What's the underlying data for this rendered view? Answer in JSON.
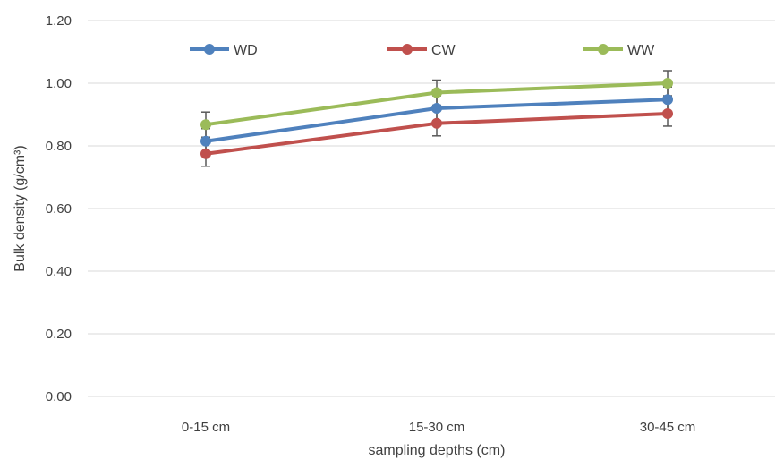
{
  "chart_data": {
    "type": "line",
    "title": "",
    "xlabel": "sampling depths (cm)",
    "ylabel": "Bulk density  (g/cm³)",
    "categories": [
      "0-15 cm",
      "15-30 cm",
      "30-45 cm"
    ],
    "ylim": [
      0,
      1.2
    ],
    "y_ticks": [
      "0.00",
      "0.20",
      "0.40",
      "0.60",
      "0.80",
      "1.00",
      "1.20"
    ],
    "y_tick_values": [
      0,
      0.2,
      0.4,
      0.6,
      0.8,
      1.0,
      1.2
    ],
    "grid": true,
    "legend_position": "top",
    "series": [
      {
        "name": "WD",
        "color": "#4f81bd",
        "values": [
          0.815,
          0.92,
          0.948
        ],
        "errors": [
          0.04,
          0.04,
          0.04
        ]
      },
      {
        "name": "CW",
        "color": "#c0504d",
        "values": [
          0.775,
          0.872,
          0.903
        ],
        "errors": [
          0.04,
          0.04,
          0.04
        ]
      },
      {
        "name": "WW",
        "color": "#9bbb59",
        "values": [
          0.868,
          0.97,
          1.0
        ],
        "errors": [
          0.04,
          0.04,
          0.04
        ]
      }
    ],
    "error_bar_color": "#595959",
    "gridline_color": "#d9d9d9"
  }
}
